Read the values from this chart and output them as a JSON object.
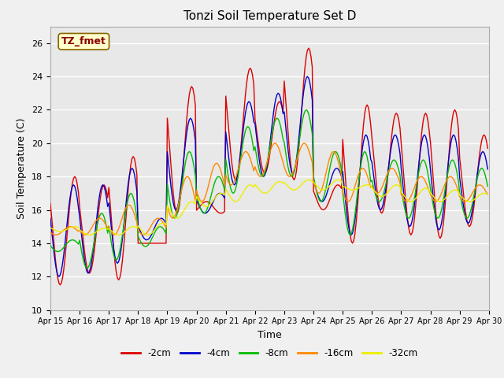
{
  "title": "Tonzi Soil Temperature Set D",
  "xlabel": "Time",
  "ylabel": "Soil Temperature (C)",
  "ylim": [
    10,
    27
  ],
  "x_tick_labels": [
    "Apr 15",
    "Apr 16",
    "Apr 17",
    "Apr 18",
    "Apr 19",
    "Apr 20",
    "Apr 21",
    "Apr 22",
    "Apr 23",
    "Apr 24",
    "Apr 25",
    "Apr 26",
    "Apr 27",
    "Apr 28",
    "Apr 29",
    "Apr 30"
  ],
  "legend_labels": [
    "-2cm",
    "-4cm",
    "-8cm",
    "-16cm",
    "-32cm"
  ],
  "line_colors": [
    "#dd0000",
    "#0000cc",
    "#00bb00",
    "#ff8800",
    "#eeee00"
  ],
  "annotation_text": "TZ_fmet",
  "annotation_bg": "#ffffcc",
  "annotation_border": "#886600",
  "annotation_text_color": "#880000",
  "plot_bg_color": "#e8e8e8",
  "fig_bg_color": "#f0f0f0",
  "grid_color": "#ffffff",
  "n_days": 15,
  "ppd": 24,
  "peak_hour": 14,
  "series": {
    "2cm": {
      "daily_max": [
        18.0,
        17.5,
        19.2,
        14.0,
        23.4,
        15.8,
        24.5,
        22.5,
        25.7,
        17.5,
        22.3,
        21.8,
        21.8,
        22.0,
        20.5
      ],
      "daily_min": [
        11.5,
        12.2,
        11.8,
        14.0,
        15.8,
        16.5,
        17.8,
        18.2,
        17.8,
        16.0,
        14.0,
        15.8,
        14.5,
        14.3,
        15.0
      ],
      "phase": 0.0
    },
    "4cm": {
      "daily_max": [
        17.5,
        17.5,
        18.5,
        15.5,
        21.5,
        17.0,
        22.5,
        23.0,
        24.0,
        18.5,
        20.5,
        20.5,
        20.5,
        20.5,
        19.5
      ],
      "daily_min": [
        12.0,
        12.2,
        12.8,
        14.2,
        16.0,
        15.8,
        17.5,
        18.0,
        18.2,
        16.5,
        14.5,
        16.0,
        15.0,
        14.8,
        15.2
      ],
      "phase": 0.04
    },
    "8cm": {
      "daily_max": [
        14.2,
        15.8,
        17.0,
        15.0,
        19.5,
        18.0,
        21.0,
        21.5,
        22.0,
        19.5,
        19.5,
        19.0,
        19.0,
        19.0,
        18.5
      ],
      "daily_min": [
        13.5,
        12.5,
        13.0,
        13.8,
        15.5,
        15.8,
        17.0,
        18.0,
        18.0,
        16.5,
        14.5,
        16.5,
        15.5,
        15.5,
        15.5
      ],
      "phase": 0.08
    },
    "16cm": {
      "daily_max": [
        15.0,
        15.5,
        16.3,
        15.5,
        18.0,
        18.8,
        19.5,
        20.0,
        20.0,
        19.5,
        18.5,
        18.5,
        18.0,
        18.0,
        17.5
      ],
      "daily_min": [
        14.5,
        14.5,
        14.5,
        14.5,
        15.5,
        16.5,
        17.5,
        18.0,
        18.0,
        17.0,
        16.5,
        17.0,
        16.5,
        16.5,
        16.5
      ],
      "phase": 0.15
    },
    "32cm": {
      "daily_max": [
        15.0,
        14.9,
        15.0,
        15.2,
        16.5,
        17.0,
        17.5,
        17.7,
        17.8,
        17.8,
        17.5,
        17.5,
        17.3,
        17.2,
        17.0
      ],
      "daily_min": [
        14.7,
        14.5,
        14.5,
        14.5,
        15.5,
        16.2,
        16.5,
        17.0,
        17.2,
        17.2,
        17.2,
        16.8,
        16.5,
        16.5,
        16.5
      ],
      "phase": 0.0
    }
  }
}
